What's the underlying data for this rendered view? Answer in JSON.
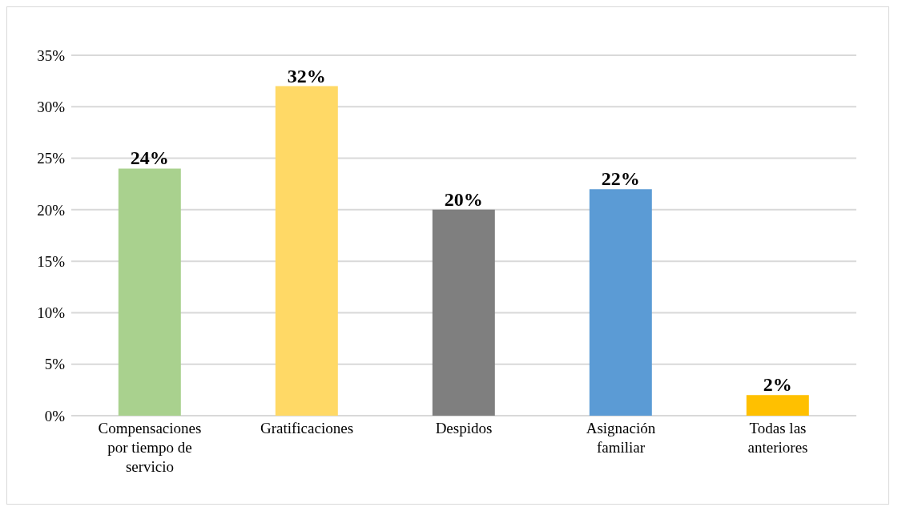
{
  "chart_data": {
    "type": "bar",
    "categories": [
      "Compensaciones por tiempo de servicio",
      "Gratificaciones",
      "Despidos",
      "Asignación familiar",
      "Todas las anteriores"
    ],
    "values": [
      24,
      32,
      20,
      22,
      2
    ],
    "colors": [
      "#a9d18e",
      "#ffd966",
      "#7f7f7f",
      "#5b9bd5",
      "#ffc000"
    ],
    "value_labels": [
      "24%",
      "32%",
      "20%",
      "22%",
      "2%"
    ],
    "ylim": [
      0,
      35
    ],
    "yticks": [
      {
        "value": 0,
        "label": "0%"
      },
      {
        "value": 5,
        "label": "5%"
      },
      {
        "value": 10,
        "label": "10%"
      },
      {
        "value": 15,
        "label": "15%"
      },
      {
        "value": 20,
        "label": "20%"
      },
      {
        "value": 25,
        "label": "25%"
      },
      {
        "value": 30,
        "label": "30%"
      },
      {
        "value": 35,
        "label": "35%"
      }
    ],
    "grid": "y"
  }
}
